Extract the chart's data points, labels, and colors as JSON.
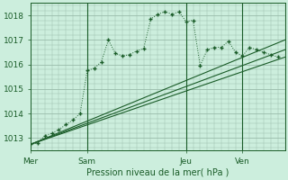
{
  "background_color": "#cceedd",
  "grid_color": "#99bbaa",
  "line_color": "#1a5c28",
  "title": "Pression niveau de la mer( hPa )",
  "ylim": [
    1012.5,
    1018.5
  ],
  "yticks": [
    1013,
    1014,
    1015,
    1016,
    1017,
    1018
  ],
  "day_labels": [
    "Mer",
    "Sam",
    "Jeu",
    "Ven"
  ],
  "day_positions": [
    0,
    8,
    22,
    30
  ],
  "xlim": [
    0,
    36
  ],
  "series1_x": [
    0,
    1,
    2,
    3,
    4,
    5,
    6,
    7,
    8,
    9,
    10,
    11,
    12,
    13,
    14,
    15,
    16,
    17,
    18,
    19,
    20,
    21,
    22,
    23,
    24,
    25,
    26,
    27,
    28,
    29,
    30,
    31,
    32,
    33,
    34,
    35
  ],
  "series1_y": [
    1012.75,
    1012.8,
    1013.1,
    1013.2,
    1013.35,
    1013.55,
    1013.75,
    1014.0,
    1015.75,
    1015.85,
    1016.1,
    1017.0,
    1016.45,
    1016.35,
    1016.4,
    1016.55,
    1016.65,
    1017.85,
    1018.05,
    1018.15,
    1018.05,
    1018.15,
    1017.75,
    1017.8,
    1015.95,
    1016.6,
    1016.7,
    1016.7,
    1016.95,
    1016.5,
    1016.35,
    1016.7,
    1016.6,
    1016.5,
    1016.4,
    1016.3
  ],
  "series2_x": [
    0,
    36
  ],
  "series2_y": [
    1012.75,
    1016.3
  ],
  "series3_x": [
    0,
    36
  ],
  "series3_y": [
    1012.75,
    1016.6
  ],
  "series4_x": [
    0,
    36
  ],
  "series4_y": [
    1012.75,
    1017.0
  ]
}
